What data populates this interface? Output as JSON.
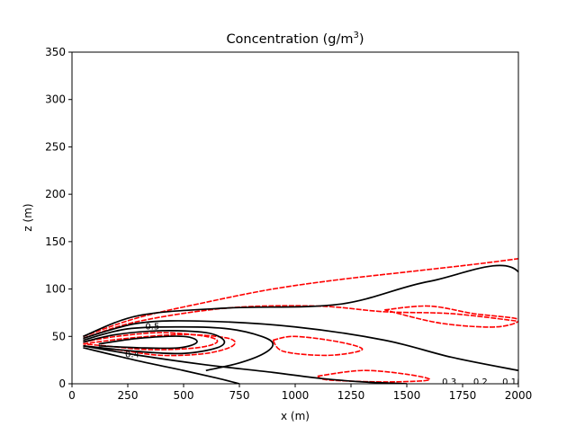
{
  "chart_data": {
    "type": "contour",
    "title_main": "Concentration (g/m",
    "title_sup": "3",
    "title_close": ")",
    "xlabel": "x (m)",
    "ylabel": "z (m)",
    "xlim": [
      0,
      2000
    ],
    "ylim": [
      0,
      350
    ],
    "xticks": [
      0,
      250,
      500,
      750,
      1000,
      1250,
      1500,
      1750,
      2000
    ],
    "yticks": [
      0,
      50,
      100,
      150,
      200,
      250,
      300,
      350
    ],
    "grid": false,
    "colors": {
      "model": "#000000",
      "observed": "#ff0000",
      "axes": "#000000"
    },
    "model_contours": [
      {
        "level": "0.1",
        "points": [
          [
            50,
            50
          ],
          [
            300,
            72
          ],
          [
            700,
            80
          ],
          [
            1200,
            84
          ],
          [
            1600,
            108
          ],
          [
            2000,
            118
          ],
          [
            2000,
            0
          ]
        ]
      },
      {
        "level": "0.2",
        "points": [
          [
            50,
            48
          ],
          [
            300,
            64
          ],
          [
            600,
            66
          ],
          [
            1000,
            60
          ],
          [
            1400,
            46
          ],
          [
            1700,
            28
          ],
          [
            2000,
            14
          ]
        ]
      },
      {
        "level": "0.3",
        "points": [
          [
            50,
            46
          ],
          [
            250,
            58
          ],
          [
            500,
            60
          ],
          [
            700,
            58
          ],
          [
            850,
            50
          ],
          [
            900,
            42
          ],
          [
            860,
            32
          ],
          [
            750,
            22
          ],
          [
            600,
            14
          ]
        ]
      },
      {
        "level": "0.4",
        "points": [
          [
            50,
            44
          ],
          [
            200,
            52
          ],
          [
            400,
            56
          ],
          [
            600,
            54
          ],
          [
            680,
            46
          ],
          [
            650,
            38
          ],
          [
            500,
            32
          ],
          [
            300,
            34
          ],
          [
            50,
            40
          ]
        ]
      },
      {
        "level": "0.5",
        "points": [
          [
            120,
            42
          ],
          [
            300,
            48
          ],
          [
            500,
            50
          ],
          [
            560,
            44
          ],
          [
            480,
            38
          ],
          [
            300,
            38
          ],
          [
            120,
            40
          ]
        ]
      }
    ],
    "model_inner_contours": [
      {
        "level": "",
        "points": [
          [
            50,
            40
          ],
          [
            300,
            30
          ],
          [
            600,
            20
          ],
          [
            900,
            12
          ],
          [
            1100,
            6
          ],
          [
            1300,
            2
          ],
          [
            1500,
            0
          ]
        ]
      },
      {
        "level": "",
        "points": [
          [
            50,
            38
          ],
          [
            300,
            24
          ],
          [
            500,
            14
          ],
          [
            650,
            6
          ],
          [
            750,
            0
          ]
        ]
      }
    ],
    "contour_labels": [
      {
        "text": "0.5",
        "x": 360,
        "y": 60
      },
      {
        "text": "0.4",
        "x": 270,
        "y": 31
      },
      {
        "text": "0.3",
        "x": 1690,
        "y": 2
      },
      {
        "text": "0.2",
        "x": 1830,
        "y": 2
      },
      {
        "text": "0.1",
        "x": 1960,
        "y": 2
      }
    ],
    "observed_contours": [
      {
        "points": [
          [
            50,
            50
          ],
          [
            300,
            70
          ],
          [
            600,
            86
          ],
          [
            900,
            100
          ],
          [
            1200,
            110
          ],
          [
            1500,
            118
          ],
          [
            1800,
            126
          ],
          [
            2000,
            132
          ]
        ]
      },
      {
        "points": [
          [
            50,
            48
          ],
          [
            300,
            66
          ],
          [
            700,
            80
          ],
          [
            1100,
            82
          ],
          [
            1400,
            76
          ],
          [
            1700,
            74
          ],
          [
            2000,
            66
          ]
        ]
      },
      {
        "points": [
          [
            50,
            44
          ],
          [
            200,
            50
          ],
          [
            400,
            54
          ],
          [
            600,
            50
          ],
          [
            650,
            44
          ],
          [
            560,
            38
          ],
          [
            350,
            36
          ],
          [
            150,
            40
          ],
          [
            50,
            42
          ]
        ]
      },
      {
        "points": [
          [
            50,
            42
          ],
          [
            250,
            48
          ],
          [
            500,
            52
          ],
          [
            700,
            48
          ],
          [
            720,
            40
          ],
          [
            600,
            32
          ],
          [
            400,
            30
          ],
          [
            200,
            36
          ],
          [
            50,
            40
          ]
        ]
      },
      {
        "points": [
          [
            900,
            46
          ],
          [
            1000,
            50
          ],
          [
            1200,
            44
          ],
          [
            1300,
            36
          ],
          [
            1150,
            30
          ],
          [
            950,
            34
          ],
          [
            900,
            46
          ]
        ]
      },
      {
        "points": [
          [
            1100,
            8
          ],
          [
            1300,
            14
          ],
          [
            1500,
            10
          ],
          [
            1600,
            4
          ],
          [
            1400,
            2
          ],
          [
            1150,
            4
          ],
          [
            1100,
            8
          ]
        ]
      },
      {
        "points": [
          [
            1400,
            78
          ],
          [
            1600,
            82
          ],
          [
            1800,
            74
          ],
          [
            2000,
            68
          ],
          [
            1900,
            60
          ],
          [
            1650,
            64
          ],
          [
            1400,
            78
          ]
        ]
      }
    ]
  }
}
